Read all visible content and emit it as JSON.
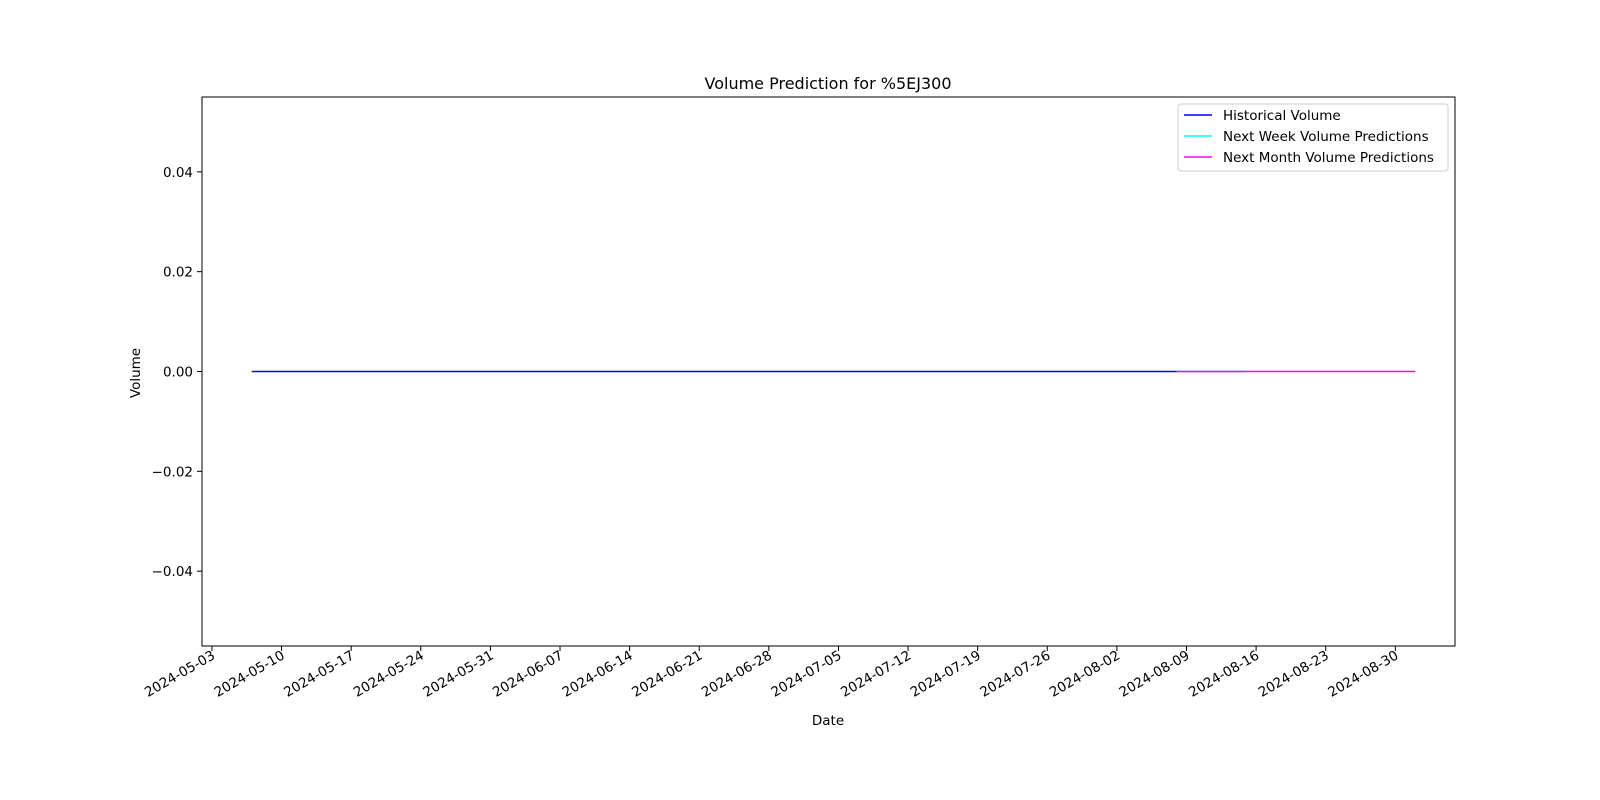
{
  "chart_data": {
    "type": "line",
    "title": "Volume Prediction for %5EJ300",
    "xlabel": "Date",
    "ylabel": "Volume",
    "xlim": [
      "2024-05-02",
      "2024-09-05"
    ],
    "ylim": [
      -0.055,
      0.055
    ],
    "x_ticks": [
      "2024-05-03",
      "2024-05-10",
      "2024-05-17",
      "2024-05-24",
      "2024-05-31",
      "2024-06-07",
      "2024-06-14",
      "2024-06-21",
      "2024-06-28",
      "2024-07-05",
      "2024-07-12",
      "2024-07-19",
      "2024-07-26",
      "2024-08-02",
      "2024-08-09",
      "2024-08-16",
      "2024-08-23",
      "2024-08-30"
    ],
    "y_ticks": [
      0.04,
      0.02,
      0.0,
      -0.02,
      -0.04
    ],
    "y_tick_labels": [
      "0.04",
      "0.02",
      "0.00",
      "−0.02",
      "−0.04"
    ],
    "grid": false,
    "legend_position": "top-right",
    "series": [
      {
        "name": "Historical Volume",
        "color": "#0000ff",
        "x": [
          "2024-05-07",
          "2024-08-08"
        ],
        "y": [
          0,
          0
        ]
      },
      {
        "name": "Next Week Volume Predictions",
        "color": "#00ffff",
        "x": [
          "2024-08-08",
          "2024-08-15"
        ],
        "y": [
          0,
          0
        ]
      },
      {
        "name": "Next Month Volume Predictions",
        "color": "#ff00ff",
        "x": [
          "2024-08-08",
          "2024-09-01"
        ],
        "y": [
          0,
          0
        ]
      }
    ]
  }
}
